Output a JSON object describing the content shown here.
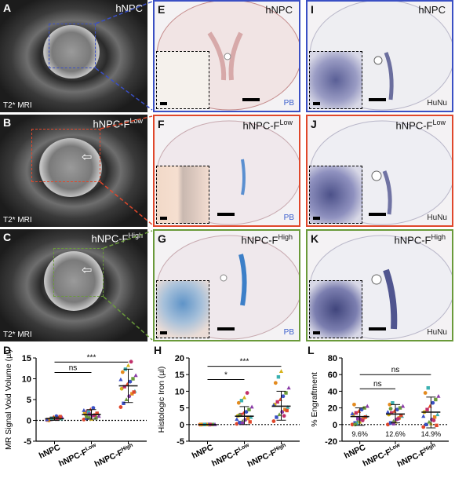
{
  "panels": {
    "A": {
      "letter": "A",
      "title": "hNPC",
      "modality": "T2* MRI"
    },
    "B": {
      "letter": "B",
      "title_main": "hNPC-F",
      "title_sup": "Low",
      "modality": "T2* MRI"
    },
    "C": {
      "letter": "C",
      "title_main": "hNPC-F",
      "title_sup": "High",
      "modality": "T2* MRI"
    },
    "E": {
      "letter": "E",
      "title": "hNPC",
      "stain": "PB"
    },
    "F": {
      "letter": "F",
      "title_main": "hNPC-F",
      "title_sup": "Low",
      "stain": "PB"
    },
    "G": {
      "letter": "G",
      "title_main": "hNPC-F",
      "title_sup": "High",
      "stain": "PB"
    },
    "I": {
      "letter": "I",
      "title": "hNPC",
      "stain": "HuNu"
    },
    "J": {
      "letter": "J",
      "title_main": "hNPC-F",
      "title_sup": "Low",
      "stain": "HuNu"
    },
    "K": {
      "letter": "K",
      "title_main": "hNPC-F",
      "title_sup": "High",
      "stain": "HuNu"
    }
  },
  "colors": {
    "blue": "#3a4fc4",
    "red": "#e0472b",
    "green": "#6a9a3a",
    "pb": "#3a5fcc"
  },
  "chart_data": [
    {
      "letter": "D",
      "type": "scatter",
      "ylabel": "MR Signal Void Volume (µl)",
      "ylim": [
        -5,
        15
      ],
      "yticks": [
        -5,
        0,
        5,
        10,
        15
      ],
      "categories": [
        {
          "main": "hNPC",
          "sup": ""
        },
        {
          "main": "hNPC-F",
          "sup": "Low"
        },
        {
          "main": "hNPC-F",
          "sup": "High"
        }
      ],
      "means": [
        0.4,
        1.4,
        8.3
      ],
      "sd": [
        [
          0.0,
          0.8
        ],
        [
          0.3,
          2.6
        ],
        [
          4.3,
          12.3
        ]
      ],
      "points": [
        [
          0.1,
          0.2,
          0.3,
          0.5,
          0.6,
          0.4,
          0.2,
          0.3,
          0.8,
          1.0,
          0.5,
          0.7,
          0.0,
          0.4,
          0.6,
          0.3,
          0.9,
          0.2
        ],
        [
          0.2,
          0.5,
          0.8,
          1.1,
          1.3,
          1.6,
          1.9,
          2.2,
          2.6,
          3.0,
          0.6,
          1.0,
          1.4,
          2.0,
          0.3,
          1.2,
          1.7,
          2.4,
          0.9,
          1.5
        ],
        [
          3.2,
          4.1,
          5.0,
          5.8,
          6.4,
          7.0,
          7.6,
          8.1,
          8.7,
          9.3,
          10.0,
          10.8,
          11.6,
          12.3,
          13.2,
          14.1,
          6.8,
          9.8
        ]
      ],
      "significance": [
        {
          "from": 0,
          "to": 1,
          "label": "ns",
          "level": 11.5
        },
        {
          "from": 0,
          "to": 2,
          "label": "***",
          "level": 14.0
        }
      ]
    },
    {
      "letter": "H",
      "type": "scatter",
      "ylabel": "Histologic Iron (µl)",
      "ylim": [
        -5,
        20
      ],
      "yticks": [
        -5,
        0,
        5,
        10,
        15,
        20
      ],
      "categories": [
        {
          "main": "hNPC",
          "sup": ""
        },
        {
          "main": "hNPC-F",
          "sup": "Low"
        },
        {
          "main": "hNPC-F",
          "sup": "High"
        }
      ],
      "means": [
        0.0,
        2.5,
        5.5
      ],
      "sd": [
        [
          0.0,
          0.0
        ],
        [
          0.0,
          5.4
        ],
        [
          1.3,
          10.0
        ]
      ],
      "points": [
        [
          0,
          0,
          0,
          0,
          0,
          0,
          0,
          0,
          0,
          0,
          0,
          0,
          0,
          0,
          0,
          0
        ],
        [
          0.2,
          0.6,
          1.0,
          1.4,
          1.8,
          2.2,
          2.6,
          3.0,
          3.4,
          3.8,
          4.5,
          5.3,
          6.5,
          7.2,
          8.1,
          9.5,
          0.8,
          1.6,
          2.8,
          0.4
        ],
        [
          1.0,
          2.2,
          3.0,
          3.8,
          4.5,
          5.2,
          6.0,
          6.8,
          7.5,
          8.5,
          9.5,
          11.0,
          12.5,
          14.3,
          16.0,
          2.6,
          4.2,
          5.8
        ]
      ],
      "significance": [
        {
          "from": 0,
          "to": 1,
          "label": "*",
          "level": 13.5
        },
        {
          "from": 0,
          "to": 2,
          "label": "***",
          "level": 17.5
        }
      ]
    },
    {
      "letter": "L",
      "type": "scatter",
      "ylabel": "% Engraftment",
      "ylim": [
        -20,
        80
      ],
      "yticks": [
        -20,
        0,
        20,
        40,
        60,
        80
      ],
      "categories": [
        {
          "main": "hNPC",
          "sup": ""
        },
        {
          "main": "hNPC-F",
          "sup": "Low"
        },
        {
          "main": "hNPC-F",
          "sup": "High"
        }
      ],
      "means": [
        9.6,
        12.6,
        14.9
      ],
      "sd": [
        [
          -1,
          20
        ],
        [
          2,
          24
        ],
        [
          -4,
          33
        ]
      ],
      "mean_labels": [
        "9.6%",
        "12.6%",
        "14.9%"
      ],
      "points": [
        [
          0,
          2,
          4,
          6,
          8,
          10,
          12,
          14,
          16,
          18,
          20,
          22,
          24,
          1,
          3,
          5,
          9,
          13,
          0,
          7
        ],
        [
          0,
          2,
          4,
          6,
          8,
          10,
          12,
          14,
          16,
          18,
          20,
          22,
          24,
          26,
          3,
          7,
          11,
          15,
          19,
          1
        ],
        [
          -3,
          0,
          3,
          6,
          9,
          12,
          15,
          18,
          22,
          26,
          30,
          34,
          38,
          44,
          1,
          5,
          -1,
          10
        ]
      ],
      "significance": [
        {
          "from": 0,
          "to": 1,
          "label": "ns",
          "level": 43
        },
        {
          "from": 0,
          "to": 2,
          "label": "ns",
          "level": 60
        }
      ]
    }
  ]
}
